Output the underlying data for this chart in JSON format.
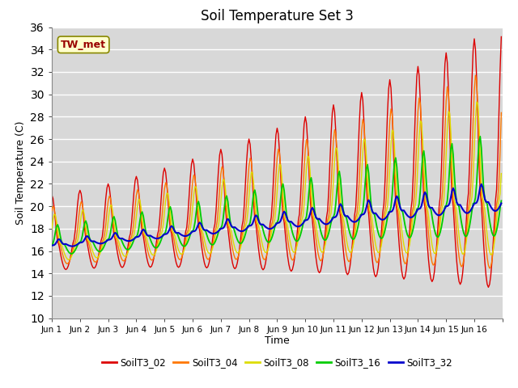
{
  "title": "Soil Temperature Set 3",
  "xlabel": "Time",
  "ylabel": "Soil Temperature (C)",
  "ylim": [
    10,
    36
  ],
  "annotation": "TW_met",
  "background_color": "#d8d8d8",
  "grid_color": "white",
  "legend": [
    "SoilT3_02",
    "SoilT3_04",
    "SoilT3_08",
    "SoilT3_16",
    "SoilT3_32"
  ],
  "colors": [
    "#dd0000",
    "#ff7700",
    "#dddd00",
    "#00cc00",
    "#0000cc"
  ],
  "line_widths": [
    1.0,
    1.0,
    1.0,
    1.3,
    1.5
  ],
  "xtick_labels": [
    "Jun 1",
    "Jun 2",
    "Jun 3",
    "Jun 4",
    "Jun 5",
    "Jun 6",
    "Jun 7",
    "Jun 8",
    "Jun 9",
    "Jun 10",
    "Jun 11",
    "Jun 12",
    "Jun 13",
    "Jun 14",
    "Jun 15",
    "Jun 16"
  ],
  "n_days": 16,
  "base_temp": 16.5,
  "trend_rate": 0.25
}
